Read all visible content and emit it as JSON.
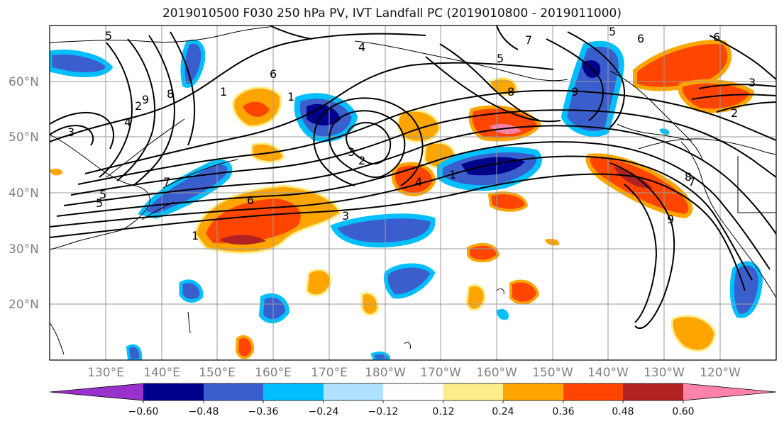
{
  "title": "2019010500 F030 250 hPa PV, IVT Landfall PC (2019010800 - 2019011000)",
  "lat_labels": [
    "60°N",
    "50°N",
    "40°N",
    "30°N",
    "20°N"
  ],
  "lon_labels": [
    "130°E",
    "140°E",
    "150°E",
    "160°E",
    "170°E",
    "180°W",
    "170°W",
    "160°W",
    "150°W",
    "140°W",
    "130°W",
    "120°W"
  ],
  "colorbar": {
    "ticks": [
      "−0.60",
      "−0.48",
      "−0.36",
      "−0.24",
      "−0.12",
      "0.12",
      "0.24",
      "0.36",
      "0.48",
      "0.60"
    ],
    "colors": [
      "#9932cc",
      "#00008b",
      "#3a5fcd",
      "#00bfff",
      "#b0e2ff",
      "#ffffff",
      "#ffec8b",
      "#ffa500",
      "#ff4500",
      "#b22222",
      "#ff82ab"
    ]
  },
  "contour_labels": [
    "5",
    "7",
    "6",
    "5",
    "6",
    "4",
    "5",
    "6",
    "8",
    "9",
    "9",
    "8",
    "4",
    "3",
    "1",
    "3",
    "2",
    "1",
    "6",
    "5",
    "3",
    "1",
    "7",
    "8",
    "9",
    "7",
    "4",
    "2",
    "3",
    "2",
    "1",
    "5"
  ]
}
